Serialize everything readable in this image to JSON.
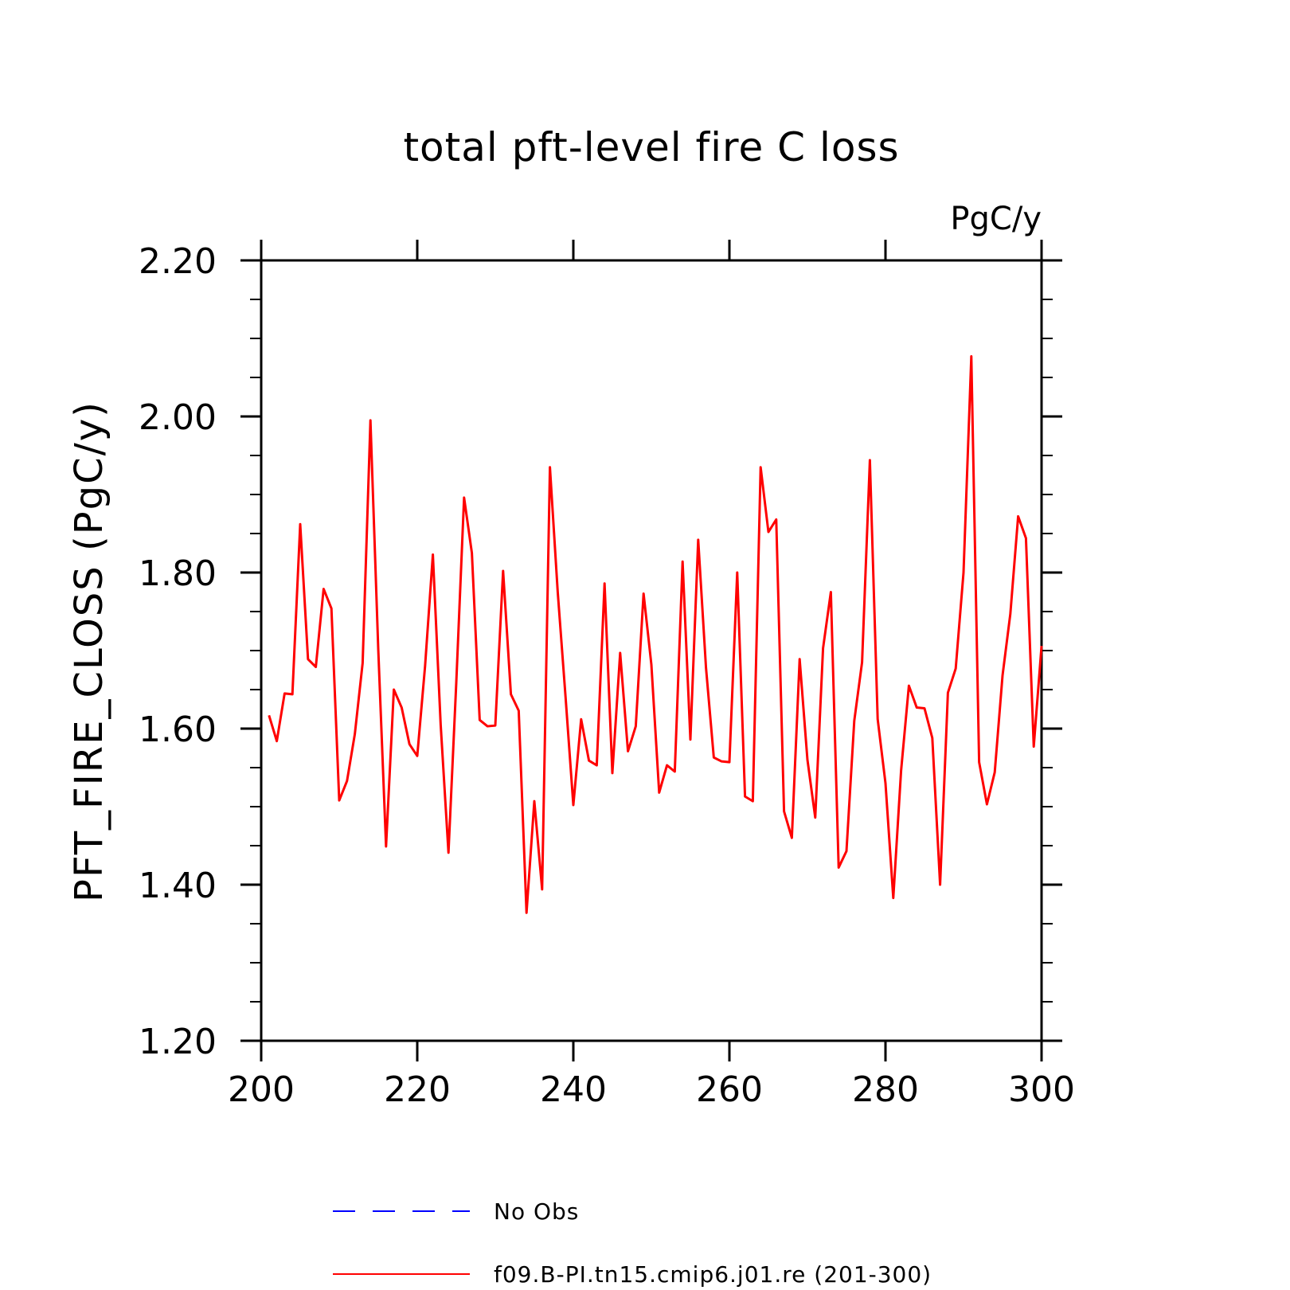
{
  "chart_data": {
    "type": "line",
    "title": "total pft-level fire C loss",
    "units_label": "PgC/y",
    "ylabel": "PFT_FIRE_CLOSS  (PgC/y)",
    "xlabel": "",
    "xlim": [
      200,
      300
    ],
    "ylim": [
      1.2,
      2.2
    ],
    "xticks": [
      200,
      220,
      240,
      260,
      280,
      300
    ],
    "xtick_labels": [
      "200",
      "220",
      "240",
      "260",
      "280",
      "300"
    ],
    "yticks": [
      1.2,
      1.4,
      1.6,
      1.8,
      2.0,
      2.2
    ],
    "ytick_labels": [
      "1.20",
      "1.40",
      "1.60",
      "1.80",
      "2.00",
      "2.20"
    ],
    "grid": false,
    "legend_position": "bottom",
    "series": [
      {
        "name": "No Obs",
        "color": "#0000ff",
        "style": "dashed",
        "x": [],
        "values": []
      },
      {
        "name": "f09.B-PI.tn15.cmip6.j01.re (201-300)",
        "color": "#ff0000",
        "style": "solid",
        "x": [
          201,
          202,
          203,
          204,
          205,
          206,
          207,
          208,
          209,
          210,
          211,
          212,
          213,
          214,
          215,
          216,
          217,
          218,
          219,
          220,
          221,
          222,
          223,
          224,
          225,
          226,
          227,
          228,
          229,
          230,
          231,
          232,
          233,
          234,
          235,
          236,
          237,
          238,
          239,
          240,
          241,
          242,
          243,
          244,
          245,
          246,
          247,
          248,
          249,
          250,
          251,
          252,
          253,
          254,
          255,
          256,
          257,
          258,
          259,
          260,
          261,
          262,
          263,
          264,
          265,
          266,
          267,
          268,
          269,
          270,
          271,
          272,
          273,
          274,
          275,
          276,
          277,
          278,
          279,
          280,
          281,
          282,
          283,
          284,
          285,
          286,
          287,
          288,
          289,
          290,
          291,
          292,
          293,
          294,
          295,
          296,
          297,
          298,
          299,
          300
        ],
        "values": [
          1.617,
          1.584,
          1.645,
          1.644,
          1.862,
          1.689,
          1.679,
          1.779,
          1.754,
          1.508,
          1.533,
          1.593,
          1.684,
          1.995,
          1.702,
          1.449,
          1.65,
          1.627,
          1.58,
          1.565,
          1.68,
          1.823,
          1.605,
          1.441,
          1.659,
          1.896,
          1.825,
          1.611,
          1.603,
          1.604,
          1.802,
          1.644,
          1.623,
          1.364,
          1.507,
          1.394,
          1.935,
          1.775,
          1.641,
          1.502,
          1.612,
          1.559,
          1.553,
          1.786,
          1.543,
          1.697,
          1.571,
          1.603,
          1.773,
          1.682,
          1.518,
          1.553,
          1.545,
          1.814,
          1.586,
          1.842,
          1.678,
          1.563,
          1.558,
          1.557,
          1.8,
          1.513,
          1.507,
          1.935,
          1.852,
          1.868,
          1.494,
          1.46,
          1.689,
          1.56,
          1.486,
          1.703,
          1.775,
          1.422,
          1.443,
          1.61,
          1.685,
          1.944,
          1.612,
          1.53,
          1.383,
          1.546,
          1.655,
          1.627,
          1.626,
          1.588,
          1.4,
          1.646,
          1.677,
          1.8,
          2.077,
          1.557,
          1.503,
          1.544,
          1.668,
          1.747,
          1.872,
          1.844,
          1.577,
          1.706
        ]
      }
    ]
  }
}
